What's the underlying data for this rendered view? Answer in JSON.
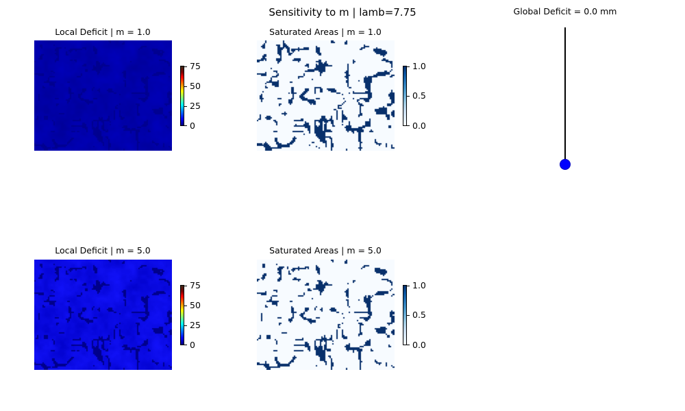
{
  "figure": {
    "suptitle": "Sensitivity to m | lamb=7.75",
    "gauge_title": "Global Deficit = 0.0 mm"
  },
  "panels": [
    {
      "title": "Local Deficit | m = 1.0",
      "type": "heatmap",
      "colormap": "jet",
      "m": 1.0
    },
    {
      "title": "Saturated Areas | m = 1.0",
      "type": "heatmap",
      "colormap": "Blues",
      "m": 1.0
    },
    {
      "title": "Local Deficit | m = 5.0",
      "type": "heatmap",
      "colormap": "jet",
      "m": 5.0
    },
    {
      "title": "Saturated Areas | m = 5.0",
      "type": "heatmap",
      "colormap": "Blues",
      "m": 5.0
    }
  ],
  "colorbars": {
    "deficit": {
      "ticks": [
        "75",
        "50",
        "25",
        "0"
      ],
      "range": [
        0,
        75
      ]
    },
    "saturated": {
      "ticks": [
        "1.0",
        "0.5",
        "0.0"
      ],
      "range": [
        0.0,
        1.0
      ]
    }
  },
  "chart_data": {
    "type": "heatmap",
    "global_deficit_mm": 0.0,
    "gauge": {
      "type": "line",
      "value": 0.0,
      "marker_color": "#0000ff",
      "line_color": "#000000"
    },
    "colors": {
      "deficit_low": "#0000c8",
      "saturated": "#08306b",
      "unsaturated": "#f7fbff"
    }
  }
}
